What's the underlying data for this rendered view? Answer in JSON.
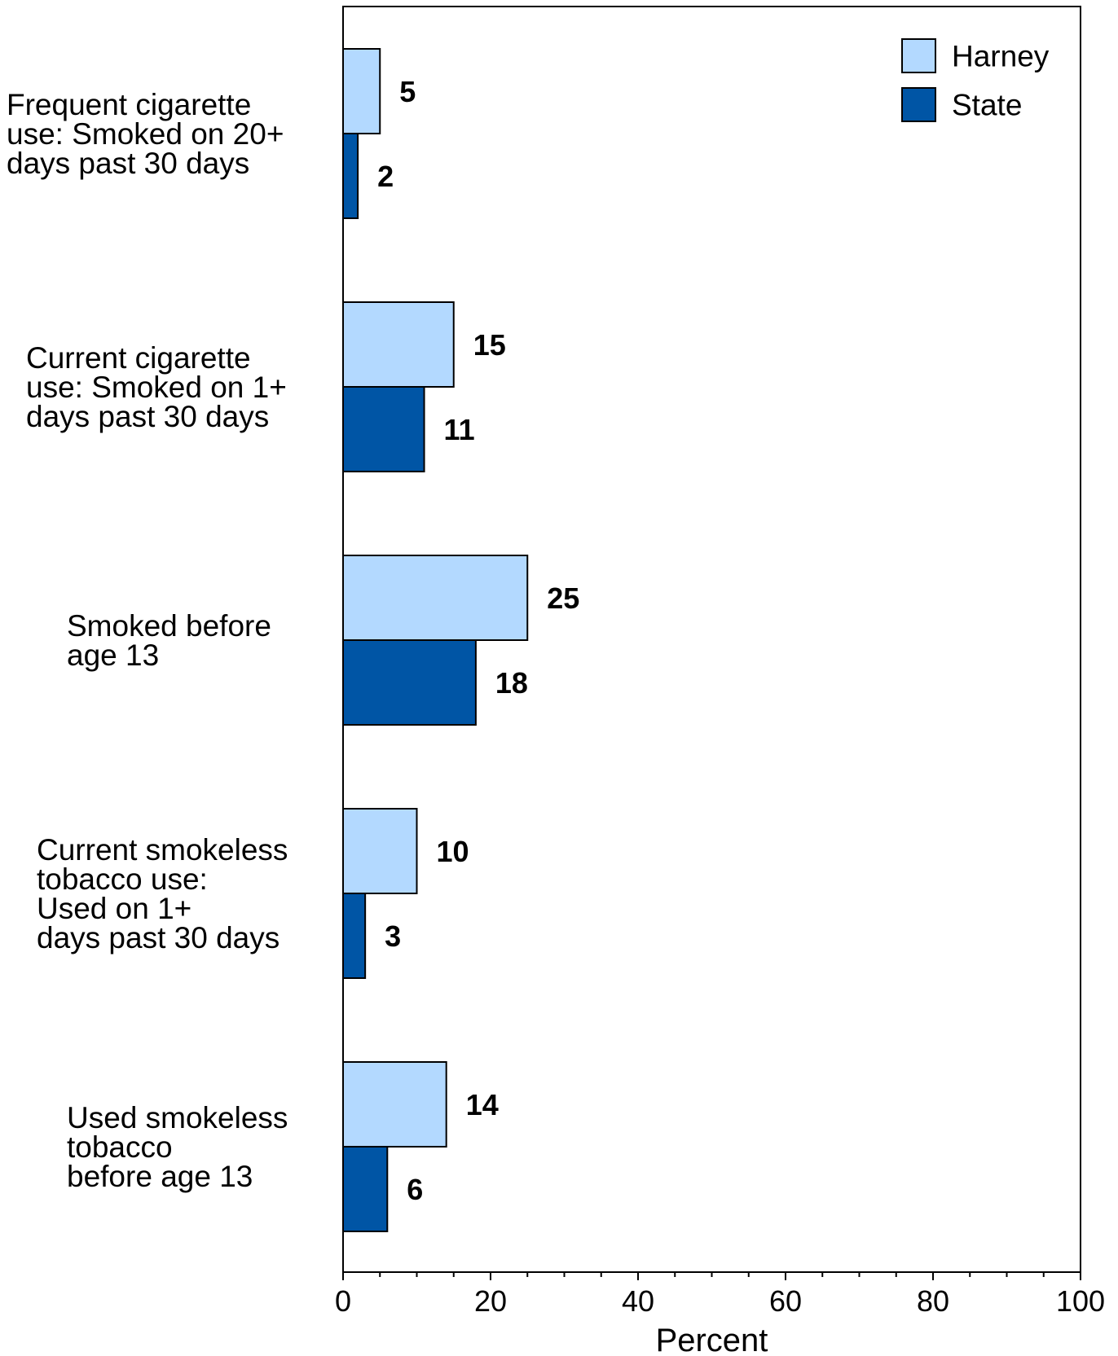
{
  "chart_data": {
    "type": "bar",
    "orientation": "horizontal",
    "categories": [
      "Frequent cigarette use: Smoked on 20+ days past 30 days",
      "Current cigarette use: Smoked on 1+ days past 30 days",
      "Smoked before age 13",
      "Current smokeless tobacco use: Used on 1+ days past 30 days",
      "Used smokeless tobacco before age 13"
    ],
    "category_lines": [
      [
        "Frequent cigarette",
        "use: Smoked on 20+",
        "days past 30 days"
      ],
      [
        "Current cigarette",
        "use: Smoked on 1+",
        "days past 30 days"
      ],
      [
        "Smoked before",
        "age 13"
      ],
      [
        "Current smokeless",
        "tobacco use:",
        "Used on 1+",
        "days past 30 days"
      ],
      [
        "Used smokeless",
        "tobacco",
        "before age 13"
      ]
    ],
    "series": [
      {
        "name": "Harney",
        "values": [
          5,
          15,
          25,
          10,
          14
        ],
        "color": "#b3d9ff"
      },
      {
        "name": "State",
        "values": [
          2,
          11,
          18,
          3,
          6
        ],
        "color": "#0055a5"
      }
    ],
    "data_labels": [
      [
        "5",
        "15",
        "25",
        "10",
        "14"
      ],
      [
        "2",
        "11",
        "18",
        "3",
        "6"
      ]
    ],
    "xlim": [
      0,
      100
    ],
    "x_ticks": [
      0,
      20,
      40,
      60,
      80,
      100
    ],
    "x_tick_labels": [
      "0",
      "20",
      "40",
      "60",
      "80",
      "100"
    ],
    "x_minor_step": 5,
    "xlabel": "Percent",
    "ylabel": "",
    "title": "",
    "grid": false,
    "legend_position": "top-right",
    "border_color": "#000000"
  }
}
